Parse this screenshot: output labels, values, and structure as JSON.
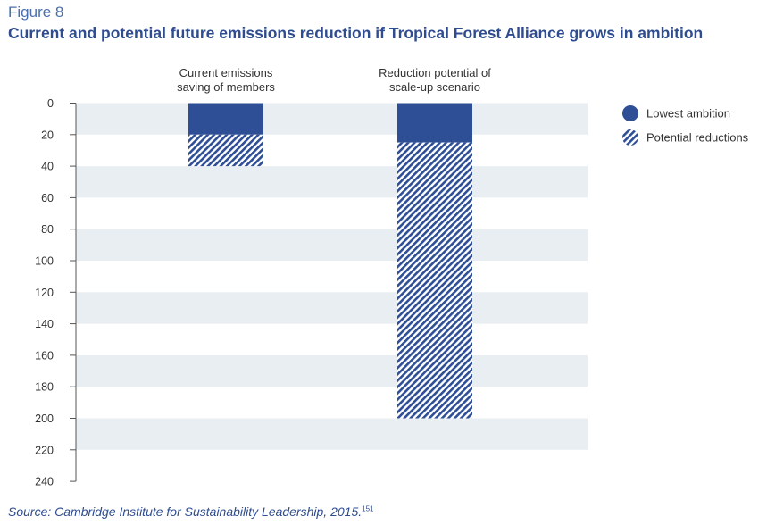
{
  "header": {
    "figure_label": "Figure 8",
    "title": "Current and potential future emissions reduction if Tropical Forest Alliance grows in ambition"
  },
  "source": {
    "text": "Source: Cambridge Institute for Sustainability Leadership, 2015.",
    "note": "151"
  },
  "colors": {
    "solid": "#2e4f95",
    "hatch": "#2e4f95",
    "band": "#e9eef2"
  },
  "chart_data": {
    "type": "bar",
    "stacked": true,
    "y_axis_inverted": true,
    "categories": [
      "Current emissions saving of members",
      "Reduction potential of scale-up scenario"
    ],
    "category_label_lines": [
      [
        "Current emissions",
        "saving of members"
      ],
      [
        "Reduction potential of",
        "scale-up scenario"
      ]
    ],
    "series": [
      {
        "name": "Lowest ambition",
        "values": [
          20,
          25
        ],
        "style": "solid"
      },
      {
        "name": "Potential reductions",
        "values": [
          20,
          175
        ],
        "style": "hatched"
      }
    ],
    "ylim": [
      0,
      240
    ],
    "yticks": [
      0,
      20,
      40,
      60,
      80,
      100,
      120,
      140,
      160,
      180,
      200,
      220,
      240
    ],
    "grid": "alternating horizontal bands",
    "legend": "right"
  }
}
